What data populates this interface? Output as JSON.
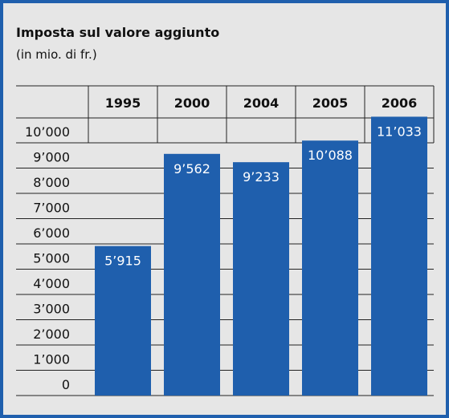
{
  "chart_data": {
    "type": "bar",
    "title": "Imposta sul valore aggiunto",
    "subtitle": "(in mio. di fr.)",
    "categories": [
      "1995",
      "2000",
      "2004",
      "2005",
      "2006"
    ],
    "values": [
      5915,
      9562,
      9233,
      10088,
      11033
    ],
    "value_labels": [
      "5’915",
      "9’562",
      "9’233",
      "10’088",
      "11’033"
    ],
    "color": "#1f5fad",
    "ylim": [
      0,
      10000
    ],
    "yticks": [
      0,
      {
        "value": 1000,
        "label": "1’000"
      },
      {
        "value": 2000,
        "label": "2’000"
      },
      {
        "value": 3000,
        "label": "3’000"
      },
      {
        "value": 4000,
        "label": "4’000"
      },
      {
        "value": 5000,
        "label": "5’000"
      },
      {
        "value": 6000,
        "label": "6’000"
      },
      {
        "value": 7000,
        "label": "7’000"
      },
      {
        "value": 8000,
        "label": "8’000"
      },
      {
        "value": 9000,
        "label": "9’000"
      },
      {
        "value": 10000,
        "label": "10’000"
      }
    ],
    "grid": true
  }
}
